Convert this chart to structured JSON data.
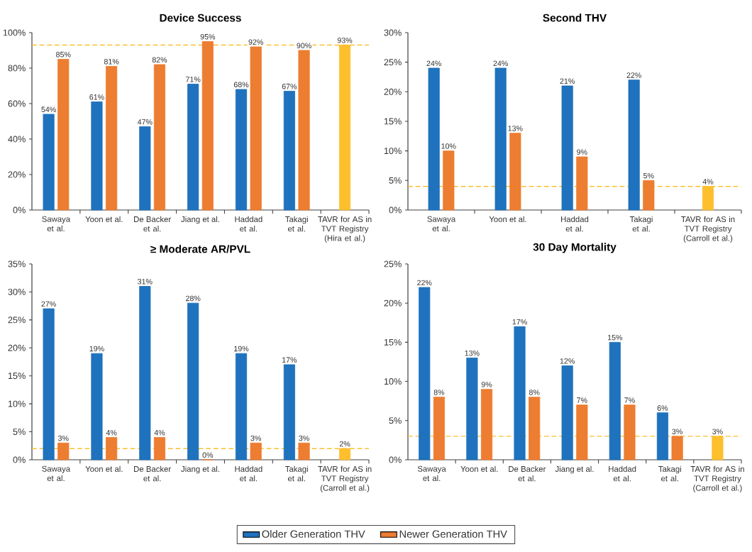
{
  "chart_data": [
    {
      "type": "bar",
      "title": "Device Success",
      "categories": [
        "Sawaya et al.",
        "Yoon et al.",
        "De Backer et al.",
        "Jiang et al.",
        "Haddad et al.",
        "Takagi et al.",
        "TAVR for AS in TVT Registry (Hira et al.)"
      ],
      "series": [
        {
          "color": "#1f72bd",
          "values": [
            54,
            61,
            47,
            71,
            68,
            67,
            null
          ],
          "value_labels": [
            "54%",
            "61%",
            "47%",
            "71%",
            "68%",
            "67%",
            null
          ]
        },
        {
          "color": "#ed7d31",
          "values": [
            85,
            81,
            82,
            95,
            92,
            90,
            null
          ],
          "value_labels": [
            "85%",
            "81%",
            "82%",
            "95%",
            "92%",
            "90%",
            null
          ]
        },
        {
          "color": "#fdbf2e",
          "values": [
            null,
            null,
            null,
            null,
            null,
            null,
            93
          ],
          "value_labels": [
            null,
            null,
            null,
            null,
            null,
            null,
            "93%"
          ]
        }
      ],
      "ylim": [
        0,
        100
      ],
      "yticks": [
        {
          "value": 0,
          "label": "0%"
        },
        {
          "value": 20,
          "label": "20%"
        },
        {
          "value": 40,
          "label": "40%"
        },
        {
          "value": 60,
          "label": "60%"
        },
        {
          "value": 80,
          "label": "80%"
        },
        {
          "value": 100,
          "label": "100%"
        }
      ],
      "ref_lines": [
        {
          "axis": "y",
          "value": 93,
          "color": "#fdbf2e",
          "line_style": "dashed"
        }
      ],
      "grid": false,
      "legend": false
    },
    {
      "type": "bar",
      "title": "Second THV",
      "categories": [
        "Sawaya et al.",
        "Yoon et al.",
        "Haddad et al.",
        "Takagi et al.",
        "TAVR for AS in TVT Registry (Carroll et al.)"
      ],
      "series": [
        {
          "color": "#1f72bd",
          "values": [
            24,
            24,
            21,
            22,
            null
          ],
          "value_labels": [
            "24%",
            "24%",
            "21%",
            "22%",
            null
          ]
        },
        {
          "color": "#ed7d31",
          "values": [
            10,
            13,
            9,
            5,
            null
          ],
          "value_labels": [
            "10%",
            "13%",
            "9%",
            "5%",
            null
          ]
        },
        {
          "color": "#fdbf2e",
          "values": [
            null,
            null,
            null,
            null,
            4
          ],
          "value_labels": [
            null,
            null,
            null,
            null,
            "4%"
          ]
        }
      ],
      "ylim": [
        0,
        30
      ],
      "yticks": [
        {
          "value": 0,
          "label": "0%"
        },
        {
          "value": 5,
          "label": "5%"
        },
        {
          "value": 10,
          "label": "10%"
        },
        {
          "value": 15,
          "label": "15%"
        },
        {
          "value": 20,
          "label": "20%"
        },
        {
          "value": 25,
          "label": "25%"
        },
        {
          "value": 30,
          "label": "30%"
        }
      ],
      "ref_lines": [
        {
          "axis": "y",
          "value": 4,
          "color": "#fdbf2e",
          "line_style": "dashed"
        }
      ],
      "grid": false,
      "legend": false
    },
    {
      "type": "bar",
      "title": "≥ Moderate AR/PVL",
      "categories": [
        "Sawaya et al.",
        "Yoon et al.",
        "De Backer et al.",
        "Jiang et al.",
        "Haddad et al.",
        "Takagi et al.",
        "TAVR for AS in TVT Registry (Carroll et al.)"
      ],
      "series": [
        {
          "name": "Older Generation THV",
          "color": "#1f72bd",
          "values": [
            27,
            19,
            31,
            28,
            19,
            17,
            null
          ],
          "value_labels": [
            "27%",
            "19%",
            "31%",
            "28%",
            "19%",
            "17%",
            null
          ]
        },
        {
          "name": "Newer Generation THV",
          "color": "#ed7d31",
          "values": [
            3,
            4,
            4,
            0,
            3,
            3,
            null
          ],
          "value_labels": [
            "3%",
            "4%",
            "4%",
            "0%",
            "3%",
            "3%",
            null
          ]
        },
        {
          "color": "#fdbf2e",
          "values": [
            null,
            null,
            null,
            null,
            null,
            null,
            2
          ],
          "value_labels": [
            null,
            null,
            null,
            null,
            null,
            null,
            "2%"
          ]
        }
      ],
      "ylim": [
        0,
        35
      ],
      "yticks": [
        {
          "value": 0,
          "label": "0%"
        },
        {
          "value": 5,
          "label": "5%"
        },
        {
          "value": 10,
          "label": "10%"
        },
        {
          "value": 15,
          "label": "15%"
        },
        {
          "value": 20,
          "label": "20%"
        },
        {
          "value": 25,
          "label": "25%"
        },
        {
          "value": 30,
          "label": "30%"
        },
        {
          "value": 35,
          "label": "35%"
        }
      ],
      "ref_lines": [
        {
          "axis": "y",
          "value": 2,
          "color": "#fdbf2e",
          "line_style": "dashed"
        }
      ],
      "grid": false,
      "legend": "bottom"
    },
    {
      "type": "bar",
      "title": "30 Day Mortality",
      "categories": [
        "Sawaya et al.",
        "Yoon et al.",
        "De Backer et al.",
        "Jiang et al.",
        "Haddad et al.",
        "Takagi et al.",
        "TAVR for AS in TVT Registry (Carroll et al.)"
      ],
      "series": [
        {
          "color": "#1f72bd",
          "values": [
            22,
            13,
            17,
            12,
            15,
            6,
            null
          ],
          "value_labels": [
            "22%",
            "13%",
            "17%",
            "12%",
            "15%",
            "6%",
            null
          ]
        },
        {
          "color": "#ed7d31",
          "values": [
            8,
            9,
            8,
            7,
            7,
            3,
            null
          ],
          "value_labels": [
            "8%",
            "9%",
            "8%",
            "7%",
            "7%",
            "3%",
            null
          ]
        },
        {
          "color": "#fdbf2e",
          "values": [
            null,
            null,
            null,
            null,
            null,
            null,
            3
          ],
          "value_labels": [
            null,
            null,
            null,
            null,
            null,
            null,
            "3%"
          ]
        }
      ],
      "ylim": [
        0,
        25
      ],
      "yticks": [
        {
          "value": 0,
          "label": "0%"
        },
        {
          "value": 5,
          "label": "5%"
        },
        {
          "value": 10,
          "label": "10%"
        },
        {
          "value": 15,
          "label": "15%"
        },
        {
          "value": 20,
          "label": "20%"
        },
        {
          "value": 25,
          "label": "25%"
        }
      ],
      "ref_lines": [
        {
          "axis": "y",
          "value": 3,
          "color": "#fdbf2e",
          "line_style": "dashed"
        }
      ],
      "grid": false,
      "legend": false
    }
  ]
}
